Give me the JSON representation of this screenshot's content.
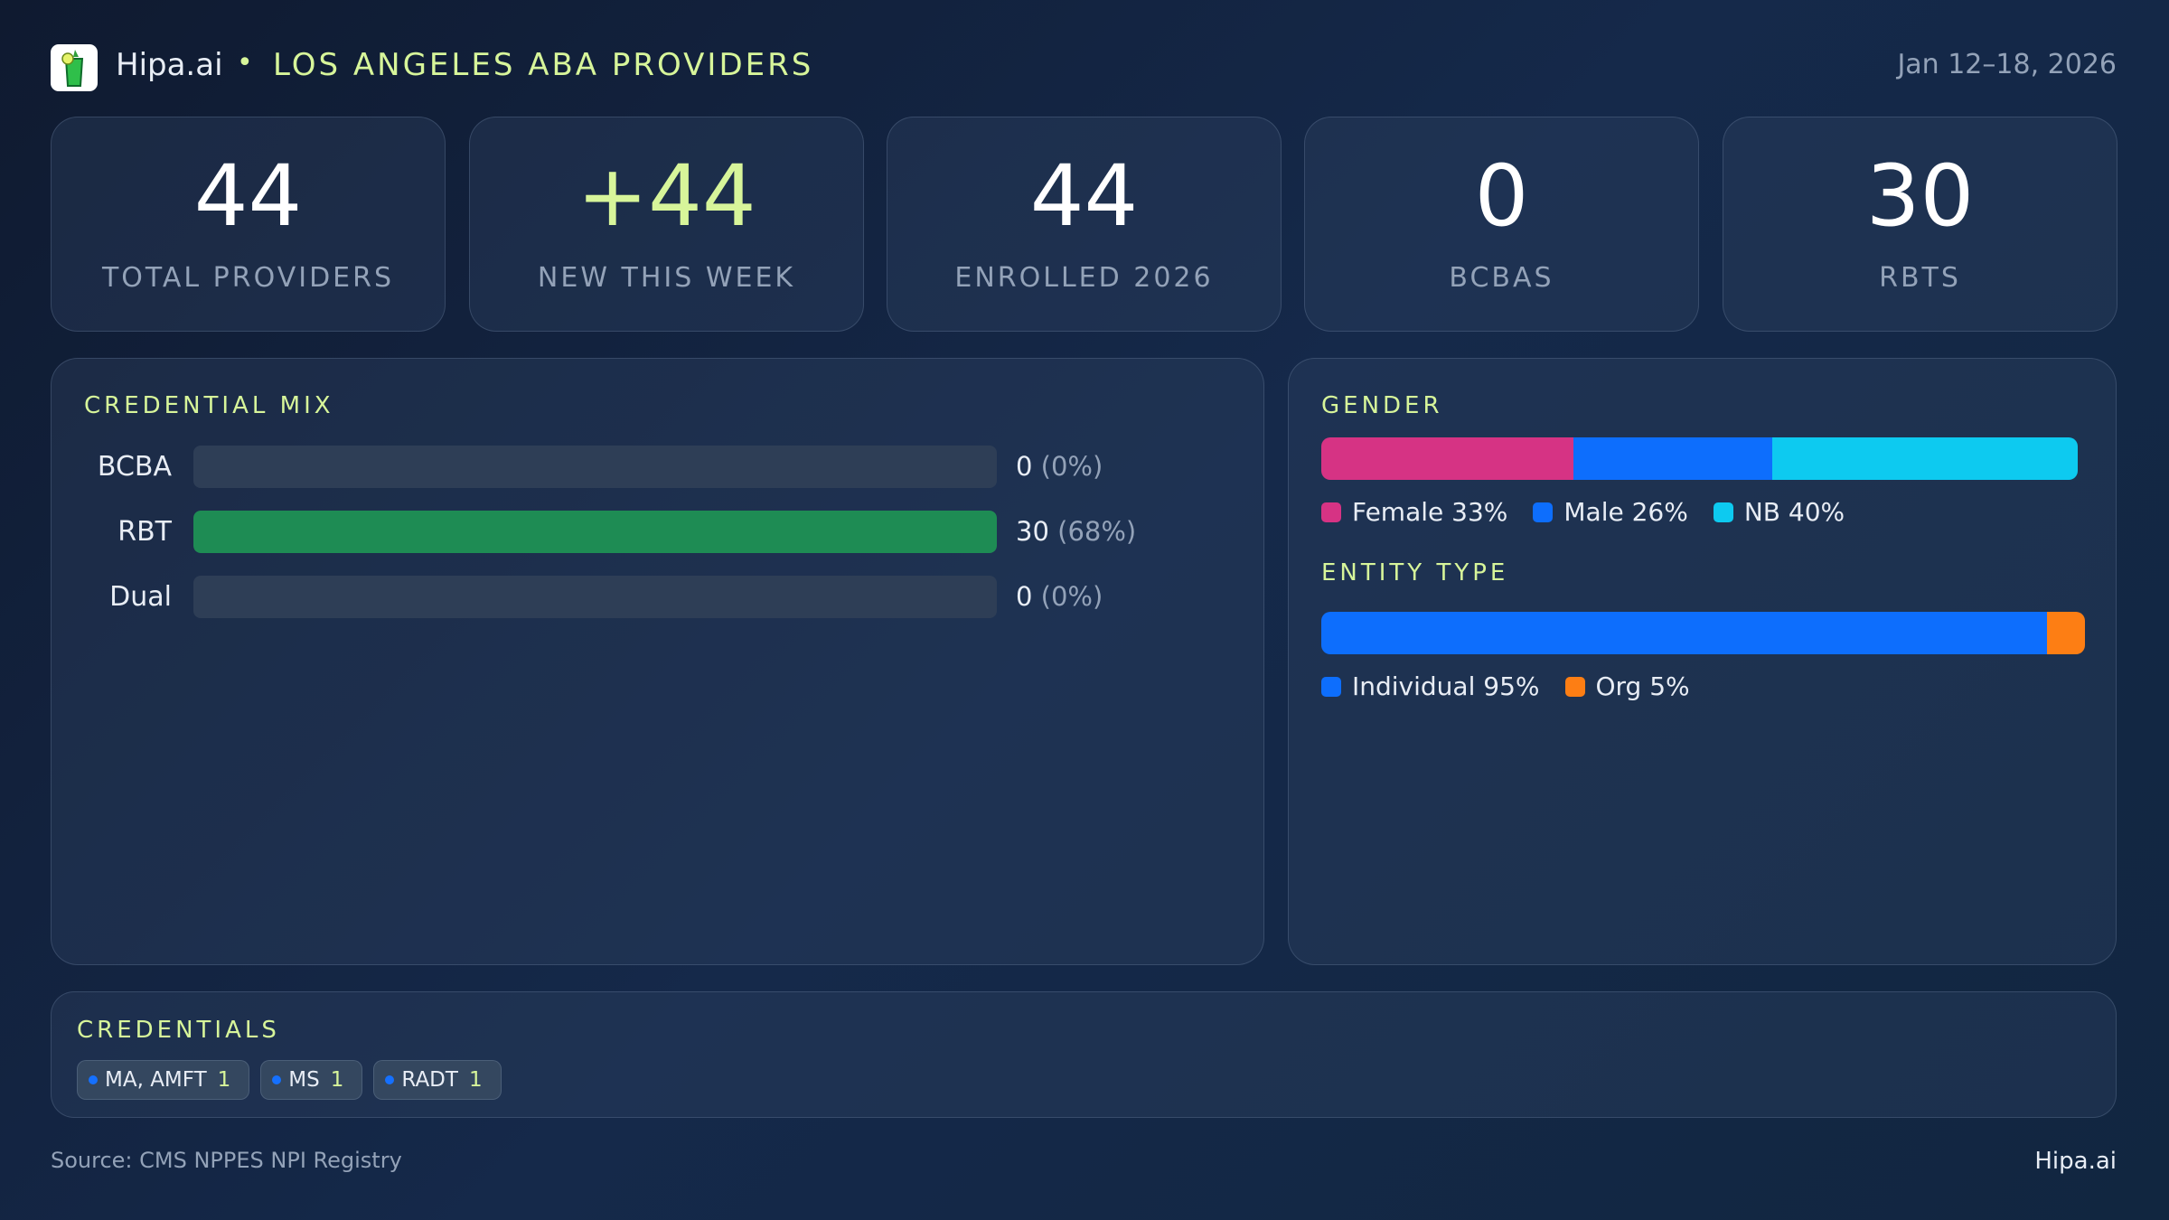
{
  "header": {
    "brand": "Hipa.ai",
    "separator": "•",
    "title": "LOS ANGELES ABA PROVIDERS",
    "date_range": "Jan 12–18, 2026"
  },
  "kpis": [
    {
      "value": "44",
      "label": "TOTAL PROVIDERS"
    },
    {
      "value": "+44",
      "label": "NEW THIS WEEK",
      "accent": true
    },
    {
      "value": "44",
      "label": "ENROLLED 2026"
    },
    {
      "value": "0",
      "label": "BCBAS"
    },
    {
      "value": "30",
      "label": "RBTS"
    }
  ],
  "credential_mix": {
    "title": "CREDENTIAL MIX",
    "rows": [
      {
        "label": "BCBA",
        "count": "0",
        "pct": "(0%)",
        "fraction": 0
      },
      {
        "label": "RBT",
        "count": "30",
        "pct": "(68%)",
        "fraction": 1
      },
      {
        "label": "Dual",
        "count": "0",
        "pct": "(0%)",
        "fraction": 0
      }
    ],
    "fill_color": "#1e8c54"
  },
  "gender": {
    "title": "GENDER",
    "segments": [
      {
        "label": "Female 33%",
        "value": 33,
        "color": "#d63384"
      },
      {
        "label": "Male 26%",
        "value": 26,
        "color": "#0d6efd"
      },
      {
        "label": "NB 40%",
        "value": 40,
        "color": "#0dcaf0"
      }
    ]
  },
  "entity_type": {
    "title": "ENTITY TYPE",
    "segments": [
      {
        "label": "Individual 95%",
        "value": 95,
        "color": "#0d6efd"
      },
      {
        "label": "Org 5%",
        "value": 5,
        "color": "#fd7e14"
      }
    ]
  },
  "credentials": {
    "title": "CREDENTIALS",
    "chips": [
      {
        "label": "MA, AMFT",
        "count": "1"
      },
      {
        "label": "MS",
        "count": "1"
      },
      {
        "label": "RADT",
        "count": "1"
      }
    ]
  },
  "footer": {
    "source": "Source: CMS NPPES NPI Registry",
    "brand": "Hipa.ai"
  }
}
